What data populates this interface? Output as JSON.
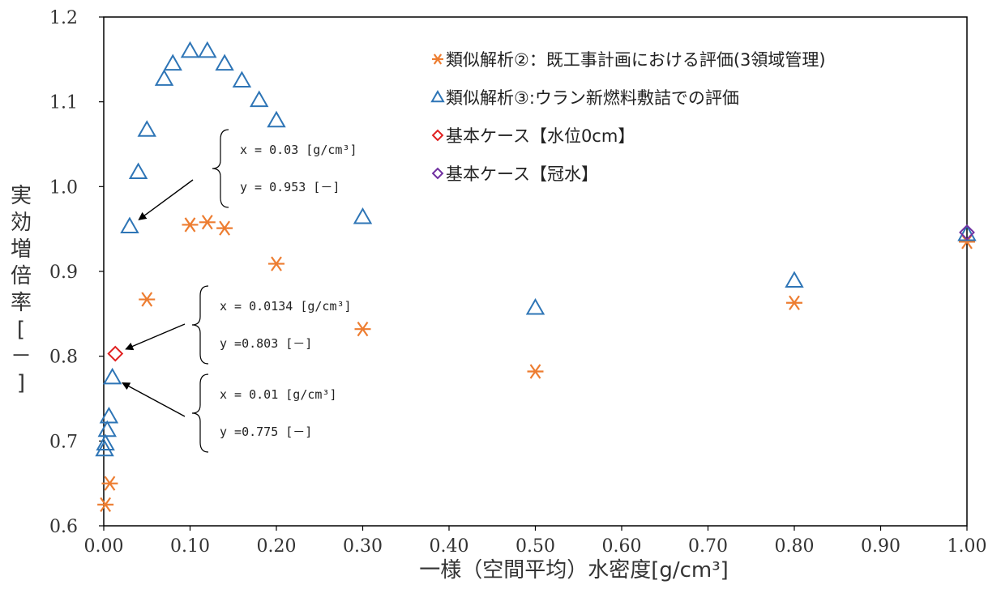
{
  "chart_data": {
    "type": "scatter",
    "xlabel": "一様（空間平均）水密度[g/cm³]",
    "ylabel": "実効増倍率[－]",
    "xlim": [
      0,
      1
    ],
    "ylim": [
      0.6,
      1.2
    ],
    "x_ticks": [
      "0.00",
      "0.10",
      "0.20",
      "0.30",
      "0.40",
      "0.50",
      "0.60",
      "0.70",
      "0.80",
      "0.90",
      "1.00"
    ],
    "y_ticks": [
      "0.6",
      "0.7",
      "0.8",
      "0.9",
      "1.0",
      "1.1",
      "1.2"
    ],
    "legend_position": "top-right",
    "grid": false,
    "series": [
      {
        "name": "類似解析②：既工事計画における評価(3領域管理)",
        "marker": "asterisk",
        "color": "#ED7D31",
        "points": [
          [
            0.002,
            0.625
          ],
          [
            0.007,
            0.65
          ],
          [
            0.05,
            0.867
          ],
          [
            0.1,
            0.955
          ],
          [
            0.12,
            0.958
          ],
          [
            0.14,
            0.951
          ],
          [
            0.2,
            0.909
          ],
          [
            0.3,
            0.832
          ],
          [
            0.5,
            0.782
          ],
          [
            0.8,
            0.863
          ],
          [
            1.0,
            0.935
          ]
        ]
      },
      {
        "name": "類似解析③:ウラン新燃料敷詰での評価",
        "marker": "triangle",
        "color": "#2E75B6",
        "points": [
          [
            0.001,
            0.69
          ],
          [
            0.002,
            0.697
          ],
          [
            0.004,
            0.713
          ],
          [
            0.006,
            0.729
          ],
          [
            0.01,
            0.775
          ],
          [
            0.03,
            0.953
          ],
          [
            0.04,
            1.017
          ],
          [
            0.05,
            1.067
          ],
          [
            0.07,
            1.127
          ],
          [
            0.08,
            1.145
          ],
          [
            0.1,
            1.16
          ],
          [
            0.12,
            1.16
          ],
          [
            0.14,
            1.145
          ],
          [
            0.16,
            1.125
          ],
          [
            0.18,
            1.102
          ],
          [
            0.2,
            1.078
          ],
          [
            0.3,
            0.964
          ],
          [
            0.5,
            0.857
          ],
          [
            0.8,
            0.889
          ],
          [
            1.0,
            0.944
          ]
        ]
      },
      {
        "name": "基本ケース【水位0cm】",
        "marker": "diamond",
        "color": "#E02020",
        "points": [
          [
            0.0134,
            0.803
          ]
        ]
      },
      {
        "name": "基本ケース【冠水】",
        "marker": "diamond",
        "color": "#7030A0",
        "points": [
          [
            1.0,
            0.946
          ]
        ]
      }
    ],
    "annotations": [
      {
        "lines": [
          "x = 0.03 [g/cm³]",
          "y = 0.953 [－]"
        ],
        "target": [
          0.03,
          0.953
        ]
      },
      {
        "lines": [
          "x = 0.0134 [g/cm³]",
          "y =0.803 [－]"
        ],
        "target": [
          0.0134,
          0.803
        ]
      },
      {
        "lines": [
          "x = 0.01 [g/cm³]",
          "y =0.775 [－]"
        ],
        "target": [
          0.01,
          0.775
        ]
      }
    ]
  }
}
